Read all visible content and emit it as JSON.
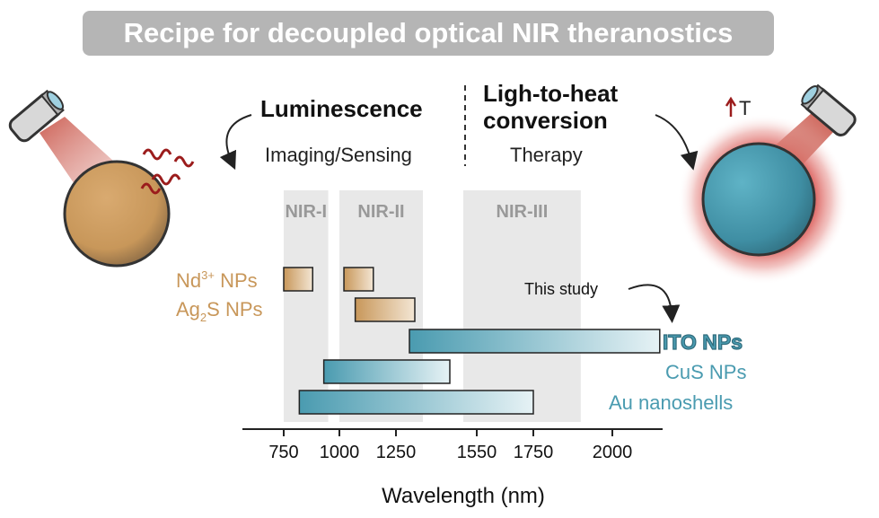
{
  "title": "Recipe for decoupled optical NIR theranostics",
  "left_panel": {
    "heading": "Luminescence",
    "subheading": "Imaging/Sensing"
  },
  "right_panel": {
    "heading_line1": "Ligh-to-heat",
    "heading_line2": "conversion",
    "subheading": "Therapy",
    "temperature_label": "T"
  },
  "chart_data": {
    "type": "range-bar",
    "xlabel": "Wavelength (nm)",
    "xticks": [
      750,
      1000,
      1250,
      1550,
      1750,
      2000
    ],
    "xlim": [
      620,
      2250
    ],
    "windows": [
      {
        "name": "NIR-I",
        "start": 750,
        "end": 950
      },
      {
        "name": "NIR-II",
        "start": 1000,
        "end": 1350
      },
      {
        "name": "NIR-III",
        "start": 1500,
        "end": 1900
      }
    ],
    "series": [
      {
        "name": "Nd3+ NPs",
        "group": "luminescence",
        "color": "#c8975a",
        "ranges": [
          [
            750,
            880
          ],
          [
            1020,
            1150
          ]
        ]
      },
      {
        "name": "Ag2S NPs",
        "group": "luminescence",
        "color": "#c8975a",
        "ranges": [
          [
            1070,
            1320
          ]
        ]
      },
      {
        "name": "ITO NPs",
        "group": "heat",
        "color": "#4a9bb0",
        "ranges": [
          [
            1300,
            2150
          ]
        ]
      },
      {
        "name": "CuS NPs",
        "group": "heat",
        "color": "#4a9bb0",
        "ranges": [
          [
            930,
            1450
          ]
        ]
      },
      {
        "name": "Au nanoshells",
        "group": "heat",
        "color": "#4a9bb0",
        "ranges": [
          [
            820,
            1750
          ]
        ]
      }
    ],
    "annotation": "This study"
  },
  "labels": {
    "nd_base": "Nd",
    "nd_sup": "3+",
    "nd_suffix": " NPs",
    "ag_base": "Ag",
    "ag_sub": "2",
    "ag_suffix": "S NPs",
    "ito": "ITO NPs",
    "cus": "CuS NPs",
    "au": "Au nanoshells"
  },
  "colors": {
    "banner": "#b5b5b5",
    "luminescence": "#c8975a",
    "heat": "#4a9bb0",
    "window": "#e8e8e8",
    "glow": "#d9534f",
    "wave": "#9b1c1c"
  }
}
